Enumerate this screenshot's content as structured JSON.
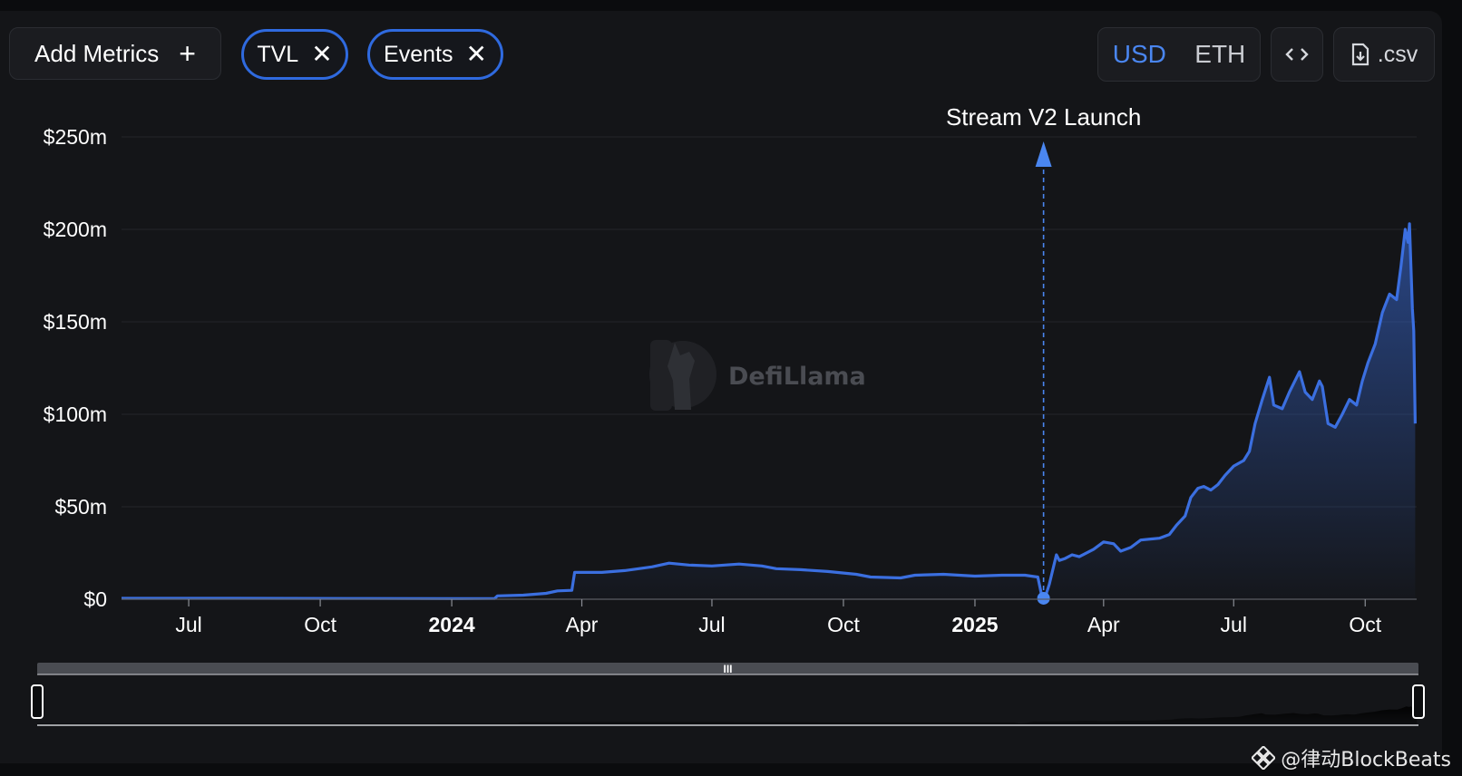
{
  "toolbar": {
    "add_metrics_label": "Add Metrics",
    "add_icon": "plus-icon",
    "chips": [
      {
        "label": "TVL",
        "close_icon": "close-icon"
      },
      {
        "label": "Events",
        "close_icon": "close-icon"
      }
    ],
    "currency": {
      "options": [
        "USD",
        "ETH"
      ],
      "selected": "USD"
    },
    "embed_icon": "code-icon",
    "csv_label": ".csv",
    "csv_icon": "file-download-icon"
  },
  "watermark": {
    "text": "DefiLlama",
    "logo_icon": "llama-logo-icon"
  },
  "credit": {
    "text": "@律动BlockBeats",
    "icon": "binance-diamond-icon"
  },
  "colors": {
    "line": "#3b6fe0",
    "accent": "#4a86f0",
    "chip_border": "#2f6adf"
  },
  "chart_data": {
    "type": "area",
    "y_tick_labels": [
      "$0",
      "$50m",
      "$100m",
      "$150m",
      "$200m",
      "$250m"
    ],
    "y_ticks": [
      0,
      50,
      100,
      150,
      200,
      250
    ],
    "ylim": [
      0,
      250
    ],
    "x_tick_labels": [
      "Jul",
      "Oct",
      "2024",
      "Apr",
      "Jul",
      "Oct",
      "2025",
      "Apr",
      "Jul",
      "Oct"
    ],
    "x_tick_dates": [
      "2023-07-01",
      "2023-10-01",
      "2024-01-01",
      "2024-04-01",
      "2024-07-01",
      "2024-10-01",
      "2025-01-01",
      "2025-04-01",
      "2025-07-01",
      "2025-10-01"
    ],
    "xlim": [
      "2023-05-15",
      "2025-11-06"
    ],
    "grid": true,
    "annotation": {
      "label": "Stream V2 Launch",
      "date": "2025-02-18",
      "value": 0.5
    },
    "series": [
      {
        "values": [
          [
            "2023-05-15",
            0.5
          ],
          [
            "2023-08-01",
            0.5
          ],
          [
            "2023-11-01",
            0.4
          ],
          [
            "2024-01-01",
            0.3
          ],
          [
            "2024-01-31",
            0.4
          ],
          [
            "2024-02-02",
            1.8
          ],
          [
            "2024-02-20",
            2.2
          ],
          [
            "2024-03-07",
            3.2
          ],
          [
            "2024-03-15",
            4.5
          ],
          [
            "2024-03-25",
            4.8
          ],
          [
            "2024-03-27",
            14.5
          ],
          [
            "2024-04-15",
            14.5
          ],
          [
            "2024-05-01",
            15.5
          ],
          [
            "2024-05-20",
            17.5
          ],
          [
            "2024-06-01",
            19.5
          ],
          [
            "2024-06-15",
            18.5
          ],
          [
            "2024-07-01",
            18.0
          ],
          [
            "2024-07-20",
            19.0
          ],
          [
            "2024-08-05",
            18.0
          ],
          [
            "2024-08-15",
            16.5
          ],
          [
            "2024-09-01",
            16.0
          ],
          [
            "2024-09-20",
            15.0
          ],
          [
            "2024-10-10",
            13.5
          ],
          [
            "2024-10-20",
            12.0
          ],
          [
            "2024-11-10",
            11.5
          ],
          [
            "2024-11-20",
            13.0
          ],
          [
            "2024-12-10",
            13.5
          ],
          [
            "2025-01-01",
            12.5
          ],
          [
            "2025-01-20",
            13.0
          ],
          [
            "2025-02-05",
            13.0
          ],
          [
            "2025-02-14",
            12.0
          ],
          [
            "2025-02-17",
            1.0
          ],
          [
            "2025-02-19",
            0.8
          ],
          [
            "2025-02-22",
            8.0
          ],
          [
            "2025-02-27",
            24.0
          ],
          [
            "2025-03-01",
            21.0
          ],
          [
            "2025-03-05",
            22.0
          ],
          [
            "2025-03-10",
            24.0
          ],
          [
            "2025-03-15",
            23.0
          ],
          [
            "2025-03-25",
            27.0
          ],
          [
            "2025-04-01",
            31.0
          ],
          [
            "2025-04-08",
            30.0
          ],
          [
            "2025-04-13",
            26.0
          ],
          [
            "2025-04-20",
            28.0
          ],
          [
            "2025-04-27",
            32.0
          ],
          [
            "2025-05-10",
            33.0
          ],
          [
            "2025-05-17",
            35.0
          ],
          [
            "2025-05-22",
            40.0
          ],
          [
            "2025-05-28",
            45.0
          ],
          [
            "2025-06-01",
            55.0
          ],
          [
            "2025-06-06",
            60.0
          ],
          [
            "2025-06-10",
            61.0
          ],
          [
            "2025-06-15",
            59.0
          ],
          [
            "2025-06-20",
            62.0
          ],
          [
            "2025-06-25",
            67.0
          ],
          [
            "2025-07-01",
            72.0
          ],
          [
            "2025-07-08",
            75.0
          ],
          [
            "2025-07-12",
            80.0
          ],
          [
            "2025-07-16",
            95.0
          ],
          [
            "2025-07-21",
            108.0
          ],
          [
            "2025-07-26",
            120.0
          ],
          [
            "2025-07-29",
            105.0
          ],
          [
            "2025-08-04",
            103.0
          ],
          [
            "2025-08-09",
            112.0
          ],
          [
            "2025-08-16",
            123.0
          ],
          [
            "2025-08-20",
            112.0
          ],
          [
            "2025-08-25",
            108.0
          ],
          [
            "2025-08-30",
            118.0
          ],
          [
            "2025-09-01",
            115.0
          ],
          [
            "2025-09-05",
            95.0
          ],
          [
            "2025-09-10",
            93.0
          ],
          [
            "2025-09-15",
            100.0
          ],
          [
            "2025-09-20",
            108.0
          ],
          [
            "2025-09-25",
            105.0
          ],
          [
            "2025-09-29",
            118.0
          ],
          [
            "2025-10-03",
            128.0
          ],
          [
            "2025-10-08",
            138.0
          ],
          [
            "2025-10-13",
            155.0
          ],
          [
            "2025-10-18",
            165.0
          ],
          [
            "2025-10-23",
            162.0
          ],
          [
            "2025-10-26",
            180.0
          ],
          [
            "2025-10-29",
            200.0
          ],
          [
            "2025-10-31",
            193.0
          ],
          [
            "2025-11-01",
            203.0
          ],
          [
            "2025-11-02",
            180.0
          ],
          [
            "2025-11-03",
            157.0
          ],
          [
            "2025-11-04",
            145.0
          ],
          [
            "2025-11-05",
            95.0
          ]
        ]
      }
    ]
  }
}
